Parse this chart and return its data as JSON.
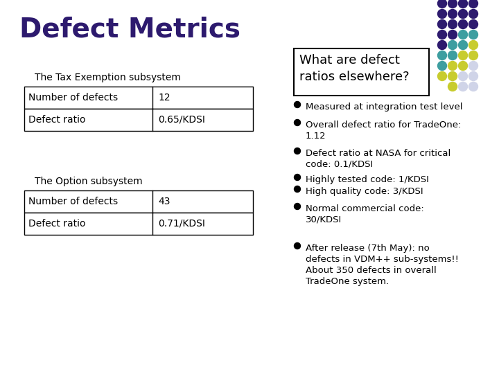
{
  "title": "Defect Metrics",
  "title_color": "#2d1a6e",
  "bg_color": "#ffffff",
  "tax_subsystem_label": "The Tax Exemption subsystem",
  "option_subsystem_label": "The Option subsystem",
  "table1": [
    [
      "Number of defects",
      "12"
    ],
    [
      "Defect ratio",
      "0.65/KDSI"
    ]
  ],
  "table2": [
    [
      "Number of defects",
      "43"
    ],
    [
      "Defect ratio",
      "0.71/KDSI"
    ]
  ],
  "callout_text": "What are defect\nratios elsewhere?",
  "bullet_points": [
    "Measured at integration test level",
    "Overall defect ratio for TradeOne:\n1.12",
    "Defect ratio at NASA for critical\ncode: 0.1/KDSI",
    "Highly tested code: 1/KDSI",
    "High quality code: 3/KDSI",
    "Normal commercial code:\n30/KDSI",
    "After release (7th May): no\ndefects in VDM++ sub-systems!!\nAbout 350 defects in overall\nTradeOne system."
  ],
  "dot_grid": [
    [
      "#2d1a6e",
      "#2d1a6e",
      "#2d1a6e",
      "#2d1a6e",
      null
    ],
    [
      "#2d1a6e",
      "#2d1a6e",
      "#2d1a6e",
      "#2d1a6e",
      null
    ],
    [
      "#2d1a6e",
      "#2d1a6e",
      "#2d1a6e",
      "#2d1a6e",
      null
    ],
    [
      "#2d1a6e",
      "#2d1a6e",
      "#3d9ea0",
      "#3d9ea0",
      null
    ],
    [
      "#2d1a6e",
      "#3d9ea0",
      "#3d9ea0",
      "#c8cc2e",
      null
    ],
    [
      "#3d9ea0",
      "#3d9ea0",
      "#c8cc2e",
      "#c8cc2e",
      null
    ],
    [
      "#3d9ea0",
      "#c8cc2e",
      "#c8cc2e",
      "#d0d4e8",
      null
    ],
    [
      "#c8cc2e",
      "#c8cc2e",
      "#d0d4e8",
      "#d0d4e8",
      null
    ],
    [
      null,
      "#c8cc2e",
      "#d0d4e8",
      "#d0d4e8",
      null
    ]
  ],
  "text_color": "#000000",
  "table_border_color": "#000000"
}
